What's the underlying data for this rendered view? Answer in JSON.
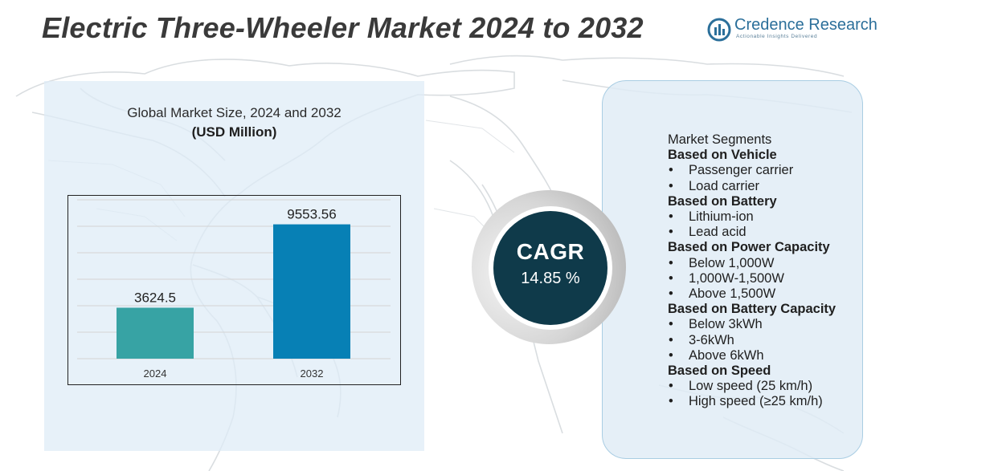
{
  "title": "Electric Three-Wheeler Market 2024 to 2032",
  "logo": {
    "name": "Credence Research",
    "tagline": "Actionable Insights Delivered"
  },
  "colors": {
    "bar_2024": "#37a3a4",
    "bar_2032": "#0780b5",
    "cagr_circle": "#0f3a4a",
    "panel": "#dcebf5"
  },
  "chart_data": {
    "type": "bar",
    "title": "Global Market Size, 2024 and 2032",
    "subtitle": "(USD Million)",
    "categories": [
      "2024",
      "2032"
    ],
    "values": [
      3624.5,
      9553.56
    ],
    "value_labels": [
      "3624.5",
      "9553.56"
    ],
    "xlabel": "",
    "ylabel": "",
    "ylim": [
      0,
      10500
    ],
    "grid": true
  },
  "cagr": {
    "label": "CAGR",
    "value": "14.85 %"
  },
  "segments": {
    "title": "Market Segments",
    "groups": [
      {
        "name": "Based on Vehicle",
        "items": [
          "Passenger carrier",
          "Load carrier"
        ]
      },
      {
        "name": "Based on Battery",
        "items": [
          "Lithium-ion",
          "Lead acid"
        ]
      },
      {
        "name": "Based on Power Capacity",
        "items": [
          "Below 1,000W",
          "1,000W-1,500W",
          "Above 1,500W"
        ]
      },
      {
        "name": "Based on Battery Capacity",
        "items": [
          "Below 3kWh",
          "3-6kWh",
          "Above 6kWh"
        ]
      },
      {
        "name": "Based on Speed",
        "items": [
          "Low speed (25 km/h)",
          "High speed (≥25 km/h)"
        ]
      }
    ]
  }
}
